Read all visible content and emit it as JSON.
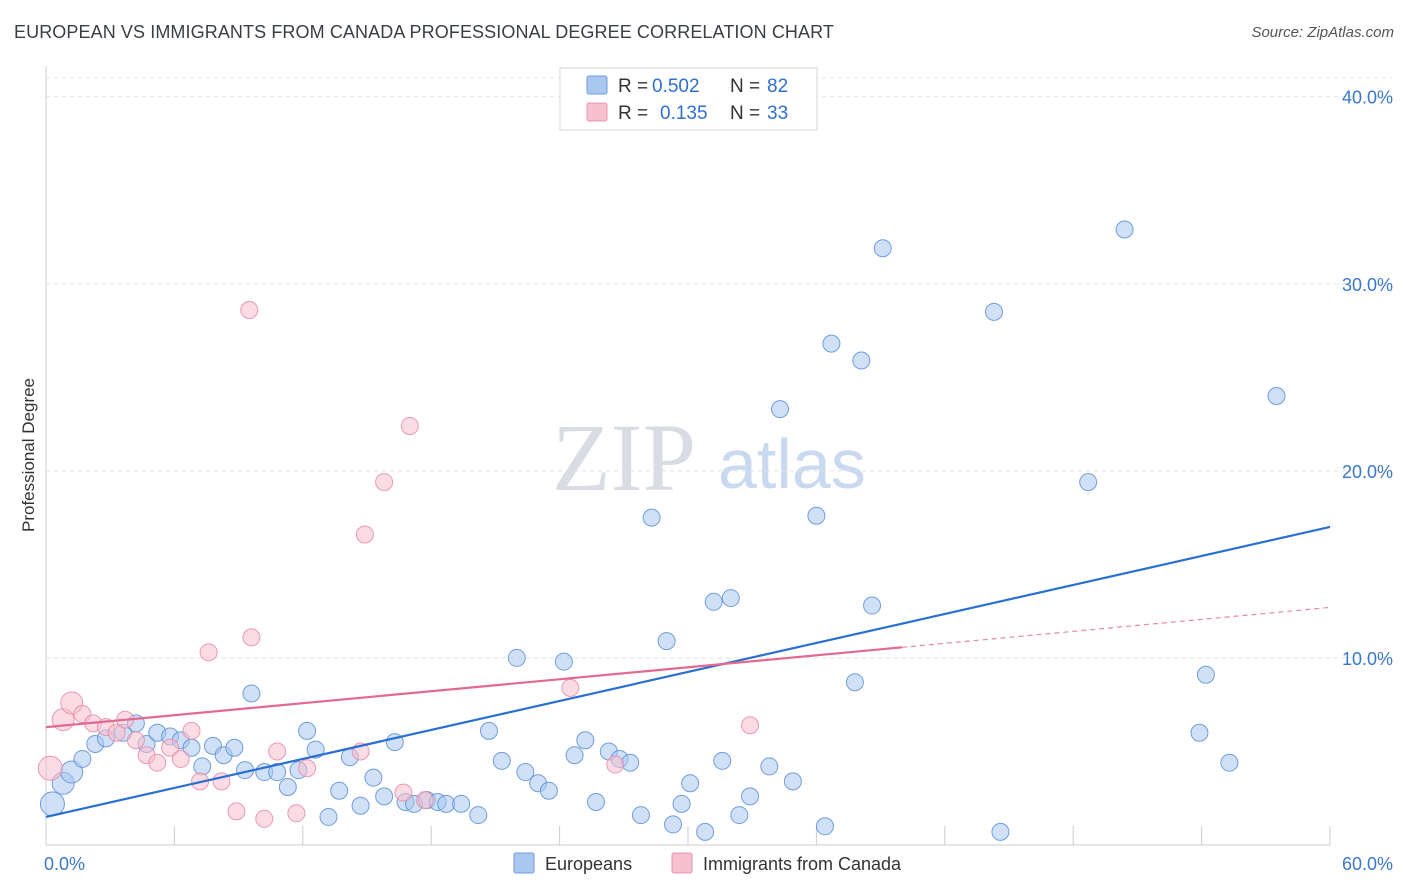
{
  "title": "EUROPEAN VS IMMIGRANTS FROM CANADA PROFESSIONAL DEGREE CORRELATION CHART",
  "source": "Source: ZipAtlas.com",
  "watermark": {
    "zip": "ZIP",
    "atlas": "atlas"
  },
  "legend_top": {
    "rows": [
      {
        "r_label": "R =",
        "r_value": "0.502",
        "n_label": "N =",
        "n_value": "82",
        "color": "#a9c8f0"
      },
      {
        "r_label": "R =",
        "r_value": "0.135",
        "n_label": "N =",
        "n_value": "33",
        "color": "#f7bfd0"
      }
    ]
  },
  "legend_bottom": {
    "items": [
      {
        "label": "Europeans",
        "color": "#a9c8f0"
      },
      {
        "label": "Immigrants from Canada",
        "color": "#f7bfd0"
      }
    ]
  },
  "chart_data": {
    "type": "scatter",
    "title": "EUROPEAN VS IMMIGRANTS FROM CANADA PROFESSIONAL DEGREE CORRELATION CHART",
    "xlabel": "",
    "ylabel": "Professional Degree",
    "xlim": [
      0,
      60
    ],
    "ylim": [
      0,
      41
    ],
    "x_tick_labels": [
      "0.0%",
      "60.0%"
    ],
    "y_ticks": [
      10,
      20,
      30,
      40
    ],
    "y_tick_labels": [
      "10.0%",
      "20.0%",
      "30.0%",
      "40.0%"
    ],
    "grid": true,
    "legend_position": "top-center",
    "series": [
      {
        "name": "Europeans",
        "color": "#5b8fd6",
        "fill": "#a9c8f0",
        "trend_color": "#2a6fd1",
        "trend": {
          "x0": 0,
          "y0": 1.5,
          "x1": 60,
          "y1": 17.0,
          "dashed_from": null
        },
        "points": [
          [
            0.3,
            2.2
          ],
          [
            0.8,
            3.3
          ],
          [
            1.2,
            3.9
          ],
          [
            1.7,
            4.6
          ],
          [
            2.3,
            5.4
          ],
          [
            2.8,
            5.7
          ],
          [
            3.6,
            6.0
          ],
          [
            4.2,
            6.5
          ],
          [
            4.7,
            5.4
          ],
          [
            5.2,
            6.0
          ],
          [
            5.8,
            5.8
          ],
          [
            6.3,
            5.6
          ],
          [
            6.8,
            5.2
          ],
          [
            7.3,
            4.2
          ],
          [
            7.8,
            5.3
          ],
          [
            8.3,
            4.8
          ],
          [
            8.8,
            5.2
          ],
          [
            9.3,
            4.0
          ],
          [
            9.6,
            8.1
          ],
          [
            10.2,
            3.9
          ],
          [
            10.8,
            3.9
          ],
          [
            11.3,
            3.1
          ],
          [
            11.8,
            4.0
          ],
          [
            12.2,
            6.1
          ],
          [
            12.6,
            5.1
          ],
          [
            13.2,
            1.5
          ],
          [
            13.7,
            2.9
          ],
          [
            14.2,
            4.7
          ],
          [
            14.7,
            2.1
          ],
          [
            15.3,
            3.6
          ],
          [
            15.8,
            2.6
          ],
          [
            16.3,
            5.5
          ],
          [
            16.8,
            2.3
          ],
          [
            17.2,
            2.2
          ],
          [
            17.8,
            2.4
          ],
          [
            18.3,
            2.3
          ],
          [
            18.7,
            2.2
          ],
          [
            19.4,
            2.2
          ],
          [
            20.2,
            1.6
          ],
          [
            20.7,
            6.1
          ],
          [
            21.3,
            4.5
          ],
          [
            22.0,
            10.0
          ],
          [
            22.4,
            3.9
          ],
          [
            23.0,
            3.3
          ],
          [
            23.5,
            2.9
          ],
          [
            24.2,
            9.8
          ],
          [
            24.7,
            4.8
          ],
          [
            25.2,
            5.6
          ],
          [
            25.7,
            2.3
          ],
          [
            26.3,
            5.0
          ],
          [
            26.8,
            4.6
          ],
          [
            27.3,
            4.4
          ],
          [
            27.8,
            1.6
          ],
          [
            28.3,
            17.5
          ],
          [
            29.0,
            10.9
          ],
          [
            29.3,
            1.1
          ],
          [
            29.7,
            2.2
          ],
          [
            30.1,
            3.3
          ],
          [
            30.8,
            0.7
          ],
          [
            31.2,
            13.0
          ],
          [
            31.6,
            4.5
          ],
          [
            32.0,
            13.2
          ],
          [
            32.4,
            1.6
          ],
          [
            32.9,
            2.6
          ],
          [
            33.8,
            4.2
          ],
          [
            34.3,
            23.3
          ],
          [
            34.9,
            3.4
          ],
          [
            36.0,
            17.6
          ],
          [
            36.4,
            1.0
          ],
          [
            36.7,
            26.8
          ],
          [
            37.8,
            8.7
          ],
          [
            38.1,
            25.9
          ],
          [
            38.6,
            12.8
          ],
          [
            39.1,
            31.9
          ],
          [
            44.3,
            28.5
          ],
          [
            44.6,
            0.7
          ],
          [
            48.7,
            19.4
          ],
          [
            50.4,
            32.9
          ],
          [
            53.9,
            6.0
          ],
          [
            54.2,
            9.1
          ],
          [
            55.3,
            4.4
          ],
          [
            57.5,
            24.0
          ]
        ]
      },
      {
        "name": "Immigrants from Canada",
        "color": "#e88aa6",
        "fill": "#f7bfd0",
        "trend_color": "#e26a92",
        "trend": {
          "x0": 0,
          "y0": 6.3,
          "x1": 60,
          "y1": 12.7,
          "dashed_from": 40
        },
        "points": [
          [
            0.2,
            4.1
          ],
          [
            0.8,
            6.7
          ],
          [
            1.2,
            7.6
          ],
          [
            1.7,
            7.0
          ],
          [
            2.2,
            6.5
          ],
          [
            2.8,
            6.3
          ],
          [
            3.3,
            6.0
          ],
          [
            3.7,
            6.7
          ],
          [
            4.2,
            5.6
          ],
          [
            4.7,
            4.8
          ],
          [
            5.2,
            4.4
          ],
          [
            5.8,
            5.2
          ],
          [
            6.3,
            4.6
          ],
          [
            6.8,
            6.1
          ],
          [
            7.2,
            3.4
          ],
          [
            7.6,
            10.3
          ],
          [
            8.2,
            3.4
          ],
          [
            8.9,
            1.8
          ],
          [
            9.5,
            28.6
          ],
          [
            9.6,
            11.1
          ],
          [
            10.2,
            1.4
          ],
          [
            10.8,
            5.0
          ],
          [
            11.7,
            1.7
          ],
          [
            12.2,
            4.1
          ],
          [
            14.7,
            5.0
          ],
          [
            14.9,
            16.6
          ],
          [
            15.8,
            19.4
          ],
          [
            16.7,
            2.8
          ],
          [
            17.0,
            22.4
          ],
          [
            17.7,
            2.4
          ],
          [
            24.5,
            8.4
          ],
          [
            26.6,
            4.3
          ],
          [
            32.9,
            6.4
          ]
        ]
      }
    ]
  }
}
